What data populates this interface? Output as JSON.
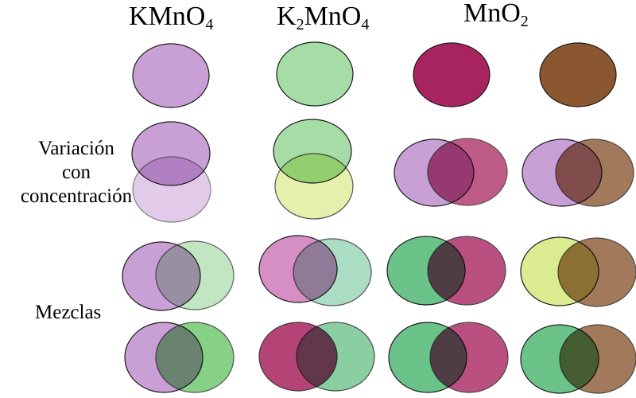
{
  "headers": [
    {
      "base": "KMnO",
      "sub": "4",
      "pre": "",
      "presub": ""
    },
    {
      "base": "MnO",
      "sub": "4",
      "pre": "K",
      "presub": "2"
    },
    {
      "base": "MnO",
      "sub": "2",
      "pre": "",
      "presub": ""
    }
  ],
  "side_labels": {
    "variation": [
      "Variación",
      "con",
      "concentración"
    ],
    "mixtures": "Mezclas"
  },
  "colors": {
    "kmno4": "#c9a0d6",
    "kmno4_dark": "#7a4c9a",
    "k2mno4": "#a6dca6",
    "k2mno4_yellow": "#dbeb8f",
    "k2mno4_dark": "#5fc25f",
    "mno2_mag": "#a8245f",
    "mno2_brown": "#8b5730",
    "pink": "#d68fc4",
    "teal": "#8fd1b0",
    "mid_green": "#6cc38a"
  }
}
